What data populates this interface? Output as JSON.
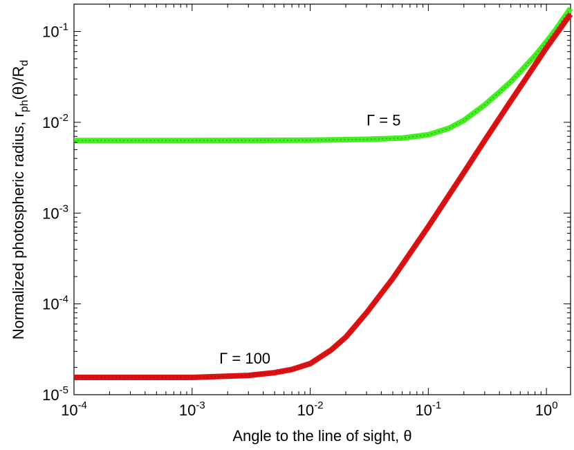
{
  "chart_data": {
    "type": "line",
    "xscale": "log",
    "yscale": "log",
    "xlim": [
      0.0001,
      1.6
    ],
    "ylim": [
      1e-05,
      0.2
    ],
    "grid": false,
    "xlabel": "Angle to the line of sight, θ",
    "ylabel_parts": {
      "prefix": "Normalized photospheric radius, r",
      "sub1": "ph",
      "mid": "(θ)/R",
      "sub2": "d"
    },
    "x_ticks": [
      {
        "value": 0.0001,
        "base": "10",
        "exp": "-4"
      },
      {
        "value": 0.001,
        "base": "10",
        "exp": "-3"
      },
      {
        "value": 0.01,
        "base": "10",
        "exp": "-2"
      },
      {
        "value": 0.1,
        "base": "10",
        "exp": "-1"
      },
      {
        "value": 1,
        "base": "10",
        "exp": "0"
      }
    ],
    "y_ticks": [
      {
        "value": 1e-05,
        "base": "10",
        "exp": "-5"
      },
      {
        "value": 0.0001,
        "base": "10",
        "exp": "-4"
      },
      {
        "value": 0.001,
        "base": "10",
        "exp": "-3"
      },
      {
        "value": 0.01,
        "base": "10",
        "exp": "-2"
      },
      {
        "value": 0.1,
        "base": "10",
        "exp": "-1"
      }
    ],
    "series": [
      {
        "color": "#44ee22",
        "x": [
          0.0001,
          0.001,
          0.01,
          0.03,
          0.06,
          0.1,
          0.15,
          0.2,
          0.3,
          0.4,
          0.5,
          0.6,
          0.8,
          1.0,
          1.2,
          1.4,
          1.6
        ],
        "y": [
          0.0063,
          0.0063,
          0.00635,
          0.0065,
          0.0067,
          0.0073,
          0.0086,
          0.0105,
          0.0155,
          0.0215,
          0.028,
          0.036,
          0.054,
          0.077,
          0.105,
          0.14,
          0.18
        ]
      },
      {
        "color": "#dd1111",
        "x": [
          0.0001,
          0.001,
          0.003,
          0.005,
          0.007,
          0.01,
          0.015,
          0.02,
          0.03,
          0.05,
          0.1,
          0.2,
          0.3,
          0.5,
          0.7,
          1.0,
          1.2,
          1.4,
          1.6
        ],
        "y": [
          1.55e-05,
          1.55e-05,
          1.63e-05,
          1.75e-05,
          1.9e-05,
          2.2e-05,
          3.1e-05,
          4.3e-05,
          8e-05,
          0.00019,
          0.00071,
          0.0028,
          0.0063,
          0.0172,
          0.033,
          0.066,
          0.092,
          0.122,
          0.155
        ]
      }
    ],
    "annotations": [
      {
        "text": "Γ = 5",
        "x": 0.03,
        "y": 0.0092
      },
      {
        "text": "Γ = 100",
        "x": 0.0017,
        "y": 2.2e-05
      }
    ]
  }
}
